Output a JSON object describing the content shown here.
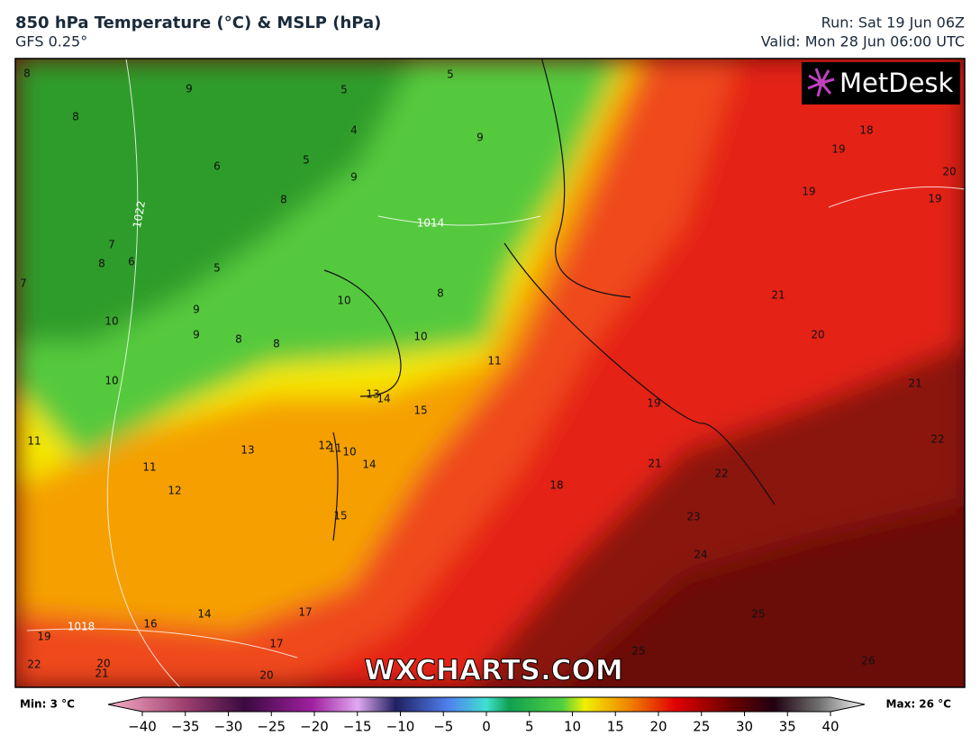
{
  "header": {
    "title": "850 hPa Temperature (°C) & MSLP (hPa)",
    "model": "GFS 0.25°",
    "run": "Run: Sat 19 Jun 06Z",
    "valid": "Valid: Mon 28 Jun 06:00 UTC"
  },
  "map": {
    "logo": "MetDesk",
    "watermark": "WXCHARTS.COM",
    "temperature_labels": [
      8,
      9,
      5,
      5,
      8,
      4,
      9,
      6,
      5,
      9,
      18,
      19,
      20,
      19,
      19,
      8,
      7,
      8,
      6,
      5,
      7,
      10,
      8,
      21,
      10,
      9,
      9,
      8,
      8,
      10,
      20,
      11,
      10,
      13,
      14,
      15,
      19,
      21,
      11,
      13,
      12,
      11,
      10,
      14,
      22,
      11,
      21,
      22,
      12,
      18,
      23,
      15,
      24,
      17,
      14,
      16,
      25,
      19,
      17,
      25,
      22,
      20,
      21,
      20,
      26
    ],
    "isobar_labels": [
      1022,
      1014,
      1018
    ]
  },
  "legend": {
    "min": "Min: 3 °C",
    "max": "Max: 26 °C",
    "ticks": [
      {
        "value": -40,
        "label": "−40"
      },
      {
        "value": -35,
        "label": "−35"
      },
      {
        "value": -30,
        "label": "−30"
      },
      {
        "value": -25,
        "label": "−25"
      },
      {
        "value": -20,
        "label": "−20"
      },
      {
        "value": -15,
        "label": "−15"
      },
      {
        "value": -10,
        "label": "−10"
      },
      {
        "value": -5,
        "label": "−5"
      },
      0,
      5,
      10,
      15,
      20,
      25,
      30,
      35,
      40
    ]
  }
}
